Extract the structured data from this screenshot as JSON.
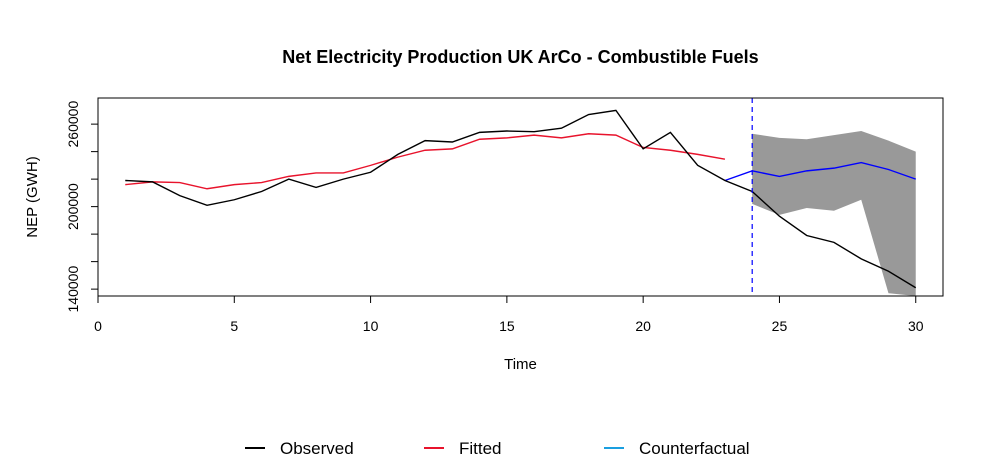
{
  "chart_data": {
    "type": "line",
    "title": "Net Electricity Production UK ArCo - Combustible Fuels",
    "xlabel": "Time",
    "ylabel": "NEP (GWH)",
    "xlim": [
      0,
      31
    ],
    "ylim": [
      135000,
      279000
    ],
    "xticks": [
      0,
      5,
      10,
      15,
      20,
      25,
      30
    ],
    "yticks": [
      140000,
      200000,
      260000
    ],
    "yticks_minor": [
      140000,
      160000,
      180000,
      200000,
      220000,
      240000,
      260000
    ],
    "intervention_x": 24,
    "series": [
      {
        "name": "Observed",
        "color": "#000000",
        "x": [
          1,
          2,
          3,
          4,
          5,
          6,
          7,
          8,
          9,
          10,
          11,
          12,
          13,
          14,
          15,
          16,
          17,
          18,
          19,
          20,
          21,
          22,
          23,
          24,
          25,
          26,
          27,
          28,
          29,
          30
        ],
        "values": [
          219000,
          218000,
          208000,
          201000,
          205000,
          211000,
          220000,
          214000,
          220000,
          225000,
          238000,
          248000,
          247000,
          254000,
          255000,
          254500,
          257000,
          267000,
          270000,
          242000,
          254000,
          230000,
          219000,
          211000,
          193000,
          179000,
          174000,
          162000,
          153000,
          141000
        ]
      },
      {
        "name": "Fitted",
        "color": "#e8132c",
        "x": [
          1,
          2,
          3,
          4,
          5,
          6,
          7,
          8,
          9,
          10,
          11,
          12,
          13,
          14,
          15,
          16,
          17,
          18,
          19,
          20,
          21,
          22,
          23
        ],
        "values": [
          216000,
          218000,
          217500,
          213000,
          216000,
          217500,
          222000,
          224500,
          224500,
          230000,
          236000,
          241000,
          242000,
          249000,
          250000,
          252000,
          250000,
          253000,
          252000,
          243000,
          241000,
          238000,
          234500
        ]
      },
      {
        "name": "Counterfactual",
        "color": "#0000ff",
        "legend_color": "#1a9fe0",
        "x": [
          23,
          24,
          25,
          26,
          27,
          28,
          29,
          30
        ],
        "values": [
          219000,
          226000,
          222000,
          226000,
          228000,
          232000,
          227000,
          220000
        ]
      }
    ],
    "interval": {
      "color": "#999999",
      "x": [
        24,
        25,
        26,
        27,
        28,
        29,
        30
      ],
      "upper": [
        253000,
        250000,
        249000,
        252000,
        255000,
        248000,
        240000
      ],
      "lower": [
        202000,
        194000,
        199000,
        197000,
        205000,
        137000,
        135000
      ]
    },
    "legend": {
      "position": "bottom",
      "entries": [
        "Observed",
        "Fitted",
        "Counterfactual"
      ]
    }
  }
}
